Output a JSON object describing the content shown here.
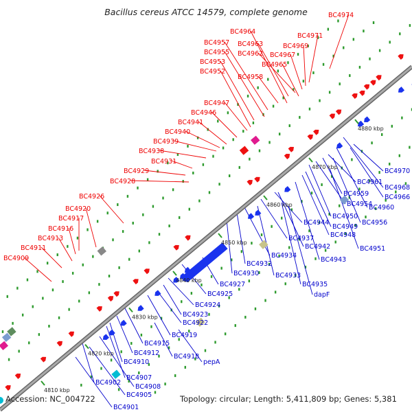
{
  "title": "Bacillus cereus ATCC 14579, complete genome",
  "accession": "Accession: NC_004722",
  "summary": "Topology: circular; Length: 5,411,809 bp; Genes: 5,381",
  "colors": {
    "upper_labels": "#ee0000",
    "lower_labels": "#0000cc",
    "backbone": "#999999"
  },
  "ticks": [
    "4810 kbp",
    "4820 kbp",
    "4830 kbp",
    "4840 kbp",
    "4850 kbp",
    "4860 kbp",
    "4870 kbp",
    "4880 kbp"
  ],
  "upper_labels": [
    "BC4974",
    "BC4964",
    "BC4971",
    "BC4957",
    "BC4963",
    "BC4969",
    "BC4955",
    "BC4962",
    "BC4967",
    "BC4953",
    "BC4965",
    "BC4952",
    "BC4958",
    "BC4947",
    "BC4946",
    "BC4941",
    "BC4940",
    "BC4939",
    "BC4938",
    "BC4931",
    "BC4929",
    "BC4928",
    "BC4926",
    "BC4920",
    "BC4917",
    "BC4916",
    "BC4913",
    "BC4911",
    "BC4909"
  ],
  "lower_labels": [
    "BC4970",
    "BC4961",
    "BC4968",
    "BC4959",
    "BC4966",
    "BC4954",
    "BC4960",
    "BC4950",
    "BC4944",
    "BC4949",
    "BC4956",
    "BC4948",
    "BC4937",
    "BC4942",
    "BC4951",
    "BC4934",
    "BC4943",
    "BC4932",
    "BC4930",
    "BC4933",
    "BC4927",
    "BC4935",
    "dapF",
    "BC4925",
    "BC4924",
    "BC4923",
    "BC4922",
    "BC4919",
    "BC4915",
    "BC4912",
    "BC4918",
    "pepA",
    "BC4910",
    "BC4907",
    "BC4908",
    "BC4902",
    "BC4905",
    "BC4901"
  ]
}
